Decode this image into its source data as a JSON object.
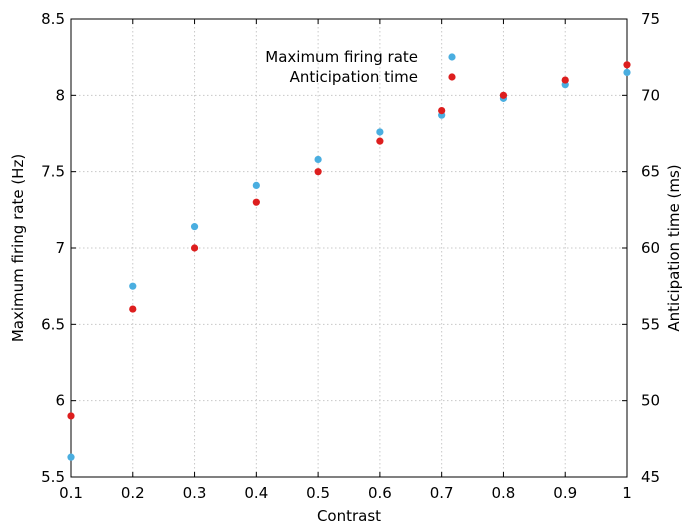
{
  "chart_data": {
    "type": "scatter",
    "x": [
      0.1,
      0.2,
      0.3,
      0.4,
      0.5,
      0.6,
      0.7,
      0.8,
      0.9,
      1.0
    ],
    "xlabel": "Contrast",
    "xlim": [
      0.1,
      1.0
    ],
    "xticks": [
      "0.1",
      "0.2",
      "0.3",
      "0.4",
      "0.5",
      "0.6",
      "0.7",
      "0.8",
      "0.9",
      "1"
    ],
    "ylabel_left": "Maximum firing rate (Hz)",
    "ylim_left": [
      5.5,
      8.5
    ],
    "yticks_left": [
      "5.5",
      "6",
      "6.5",
      "7",
      "7.5",
      "8",
      "8.5"
    ],
    "ylabel_right": "Anticipation time (ms)",
    "ylim_right": [
      45,
      75
    ],
    "yticks_right": [
      "45",
      "50",
      "55",
      "60",
      "65",
      "70",
      "75"
    ],
    "grid": true,
    "legend_position": "top-right",
    "series": [
      {
        "name": "Maximum firing rate",
        "axis": "left",
        "color": "#4aaee0",
        "values": [
          5.63,
          6.75,
          7.14,
          7.41,
          7.58,
          7.76,
          7.87,
          7.98,
          8.07,
          8.15
        ]
      },
      {
        "name": "Anticipation time",
        "axis": "right",
        "color": "#dd1e1e",
        "values": [
          49.0,
          56.0,
          60.0,
          63.0,
          65.0,
          67.0,
          69.0,
          70.0,
          71.0,
          72.0
        ]
      }
    ]
  }
}
